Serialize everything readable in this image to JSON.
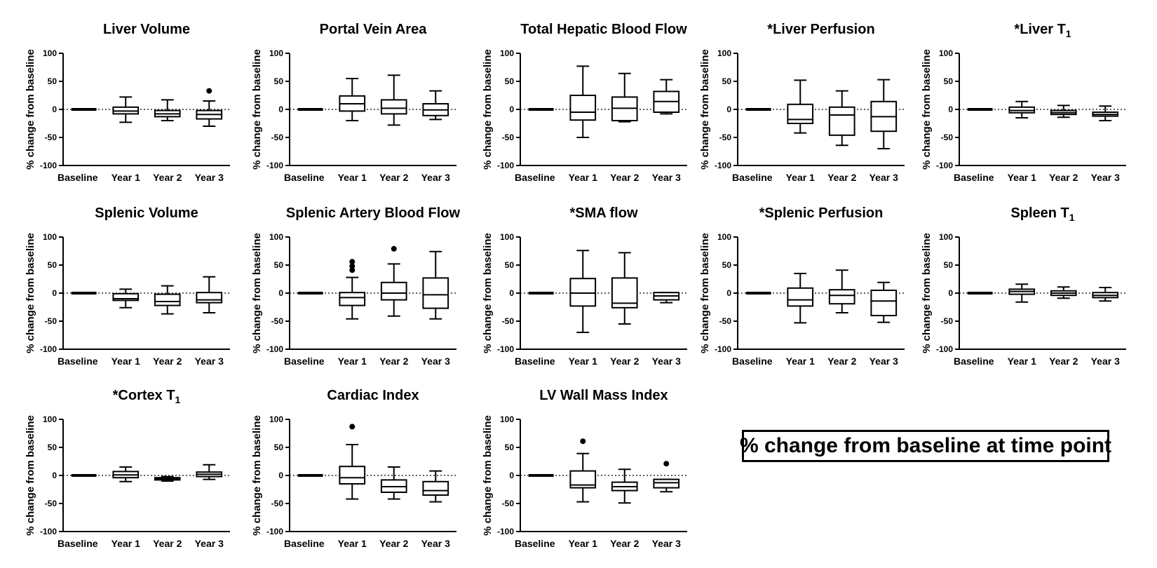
{
  "figure_note": "% change from baseline at time point",
  "chart_data": [
    {
      "id": "liver-volume",
      "type": "box",
      "title": "Liver Volume",
      "subscript": "",
      "ylabel": "% change from baseline",
      "ylim": [
        -100,
        100
      ],
      "yticks": [
        100,
        50,
        0,
        -50,
        -100
      ],
      "reference_line": 0,
      "categories": [
        "Baseline",
        "Year 1",
        "Year 2",
        "Year 3"
      ],
      "boxes": [
        {
          "min": 0,
          "q1": 0,
          "median": 0,
          "q3": 0,
          "max": 0,
          "outliers": []
        },
        {
          "min": -23,
          "q1": -8,
          "median": -3,
          "q3": 4,
          "max": 22,
          "outliers": []
        },
        {
          "min": -20,
          "q1": -13,
          "median": -8,
          "q3": -2,
          "max": 17,
          "outliers": []
        },
        {
          "min": -30,
          "q1": -17,
          "median": -9,
          "q3": -2,
          "max": 15,
          "outliers": [
            33
          ]
        }
      ]
    },
    {
      "id": "portal-vein-area",
      "type": "box",
      "title": "Portal Vein Area",
      "subscript": "",
      "ylabel": "% change from baseline",
      "ylim": [
        -100,
        100
      ],
      "yticks": [
        100,
        50,
        0,
        -50,
        -100
      ],
      "reference_line": 0,
      "categories": [
        "Baseline",
        "Year 1",
        "Year 2",
        "Year 3"
      ],
      "boxes": [
        {
          "min": 0,
          "q1": 0,
          "median": 0,
          "q3": 0,
          "max": 0,
          "outliers": []
        },
        {
          "min": -20,
          "q1": -3,
          "median": 10,
          "q3": 24,
          "max": 55,
          "outliers": []
        },
        {
          "min": -28,
          "q1": -8,
          "median": 2,
          "q3": 17,
          "max": 61,
          "outliers": []
        },
        {
          "min": -18,
          "q1": -11,
          "median": -1,
          "q3": 10,
          "max": 33,
          "outliers": []
        }
      ]
    },
    {
      "id": "total-hepatic-blood-flow",
      "type": "box",
      "title": "Total Hepatic Blood Flow",
      "subscript": "",
      "ylabel": "% change from baseline",
      "ylim": [
        -100,
        100
      ],
      "yticks": [
        100,
        50,
        0,
        -50,
        -100
      ],
      "reference_line": 0,
      "categories": [
        "Baseline",
        "Year 1",
        "Year 2",
        "Year 3"
      ],
      "boxes": [
        {
          "min": 0,
          "q1": 0,
          "median": 0,
          "q3": 0,
          "max": 0,
          "outliers": []
        },
        {
          "min": -50,
          "q1": -19,
          "median": -5,
          "q3": 25,
          "max": 77,
          "outliers": []
        },
        {
          "min": -22,
          "q1": -20,
          "median": 2,
          "q3": 22,
          "max": 64,
          "outliers": []
        },
        {
          "min": -8,
          "q1": -5,
          "median": 14,
          "q3": 32,
          "max": 53,
          "outliers": []
        }
      ]
    },
    {
      "id": "liver-perfusion",
      "type": "box",
      "title": "*Liver Perfusion",
      "subscript": "",
      "ylabel": "% change from baseline",
      "ylim": [
        -100,
        100
      ],
      "yticks": [
        100,
        50,
        0,
        -50,
        -100
      ],
      "reference_line": 0,
      "categories": [
        "Baseline",
        "Year 1",
        "Year 2",
        "Year 3"
      ],
      "boxes": [
        {
          "min": 0,
          "q1": 0,
          "median": 0,
          "q3": 0,
          "max": 0,
          "outliers": []
        },
        {
          "min": -42,
          "q1": -25,
          "median": -18,
          "q3": 9,
          "max": 52,
          "outliers": []
        },
        {
          "min": -64,
          "q1": -46,
          "median": -10,
          "q3": 4,
          "max": 33,
          "outliers": []
        },
        {
          "min": -70,
          "q1": -39,
          "median": -13,
          "q3": 14,
          "max": 53,
          "outliers": []
        }
      ]
    },
    {
      "id": "liver-t1",
      "type": "box",
      "title": "*Liver T",
      "subscript": "1",
      "ylabel": "% change from baseline",
      "ylim": [
        -100,
        100
      ],
      "yticks": [
        100,
        50,
        0,
        -50,
        -100
      ],
      "reference_line": 0,
      "categories": [
        "Baseline",
        "Year 1",
        "Year 2",
        "Year 3"
      ],
      "boxes": [
        {
          "min": 0,
          "q1": 0,
          "median": 0,
          "q3": 0,
          "max": 0,
          "outliers": []
        },
        {
          "min": -15,
          "q1": -6,
          "median": -2,
          "q3": 4,
          "max": 14,
          "outliers": []
        },
        {
          "min": -14,
          "q1": -9,
          "median": -6,
          "q3": -2,
          "max": 7,
          "outliers": []
        },
        {
          "min": -20,
          "q1": -12,
          "median": -9,
          "q3": -5,
          "max": 6,
          "outliers": []
        }
      ]
    },
    {
      "id": "splenic-volume",
      "type": "box",
      "title": "Splenic Volume",
      "subscript": "",
      "ylabel": "% change from baseline",
      "ylim": [
        -100,
        100
      ],
      "yticks": [
        100,
        50,
        0,
        -50,
        -100
      ],
      "reference_line": 0,
      "categories": [
        "Baseline",
        "Year 1",
        "Year 2",
        "Year 3"
      ],
      "boxes": [
        {
          "min": 0,
          "q1": 0,
          "median": 0,
          "q3": 0,
          "max": 0,
          "outliers": []
        },
        {
          "min": -26,
          "q1": -13,
          "median": -10,
          "q3": -1,
          "max": 7,
          "outliers": []
        },
        {
          "min": -37,
          "q1": -22,
          "median": -15,
          "q3": -2,
          "max": 13,
          "outliers": []
        },
        {
          "min": -35,
          "q1": -17,
          "median": -12,
          "q3": 1,
          "max": 29,
          "outliers": []
        }
      ]
    },
    {
      "id": "splenic-artery-blood-flow",
      "type": "box",
      "title": "Splenic Artery Blood Flow",
      "subscript": "",
      "ylabel": "% change from baseline",
      "ylim": [
        -100,
        100
      ],
      "yticks": [
        100,
        50,
        0,
        -50,
        -100
      ],
      "reference_line": 0,
      "categories": [
        "Baseline",
        "Year 1",
        "Year 2",
        "Year 3"
      ],
      "boxes": [
        {
          "min": 0,
          "q1": 0,
          "median": 0,
          "q3": 0,
          "max": 0,
          "outliers": []
        },
        {
          "min": -46,
          "q1": -22,
          "median": -8,
          "q3": 1,
          "max": 28,
          "outliers": [
            41,
            48,
            56
          ]
        },
        {
          "min": -41,
          "q1": -12,
          "median": 0,
          "q3": 19,
          "max": 52,
          "outliers": [
            79
          ]
        },
        {
          "min": -46,
          "q1": -27,
          "median": -3,
          "q3": 27,
          "max": 74,
          "outliers": []
        }
      ]
    },
    {
      "id": "sma-flow",
      "type": "box",
      "title": "*SMA flow",
      "subscript": "",
      "ylabel": "% change from baseline",
      "ylim": [
        -100,
        100
      ],
      "yticks": [
        100,
        50,
        0,
        -50,
        -100
      ],
      "reference_line": 0,
      "categories": [
        "Baseline",
        "Year 1",
        "Year 2",
        "Year 3"
      ],
      "boxes": [
        {
          "min": 0,
          "q1": 0,
          "median": 0,
          "q3": 0,
          "max": 0,
          "outliers": []
        },
        {
          "min": -70,
          "q1": -23,
          "median": 0,
          "q3": 26,
          "max": 76,
          "outliers": []
        },
        {
          "min": -55,
          "q1": -26,
          "median": -18,
          "q3": 27,
          "max": 72,
          "outliers": []
        },
        {
          "min": -17,
          "q1": -12,
          "median": -5,
          "q3": 1,
          "max": 1,
          "outliers": []
        }
      ]
    },
    {
      "id": "splenic-perfusion",
      "type": "box",
      "title": "*Splenic Perfusion",
      "subscript": "",
      "ylabel": "% change from baseline",
      "ylim": [
        -100,
        100
      ],
      "yticks": [
        100,
        50,
        0,
        -50,
        -100
      ],
      "reference_line": 0,
      "categories": [
        "Baseline",
        "Year 1",
        "Year 2",
        "Year 3"
      ],
      "boxes": [
        {
          "min": 0,
          "q1": 0,
          "median": 0,
          "q3": 0,
          "max": 0,
          "outliers": []
        },
        {
          "min": -53,
          "q1": -23,
          "median": -12,
          "q3": 9,
          "max": 35,
          "outliers": []
        },
        {
          "min": -35,
          "q1": -19,
          "median": -4,
          "q3": 6,
          "max": 41,
          "outliers": []
        },
        {
          "min": -52,
          "q1": -40,
          "median": -14,
          "q3": 5,
          "max": 19,
          "outliers": []
        }
      ]
    },
    {
      "id": "spleen-t1",
      "type": "box",
      "title": "Spleen T",
      "subscript": "1",
      "ylabel": "% change from baseline",
      "ylim": [
        -100,
        100
      ],
      "yticks": [
        100,
        50,
        0,
        -50,
        -100
      ],
      "reference_line": 0,
      "categories": [
        "Baseline",
        "Year 1",
        "Year 2",
        "Year 3"
      ],
      "boxes": [
        {
          "min": 0,
          "q1": 0,
          "median": 0,
          "q3": 0,
          "max": 0,
          "outliers": []
        },
        {
          "min": -16,
          "q1": -2,
          "median": 3,
          "q3": 7,
          "max": 16,
          "outliers": []
        },
        {
          "min": -9,
          "q1": -4,
          "median": 0,
          "q3": 4,
          "max": 11,
          "outliers": []
        },
        {
          "min": -14,
          "q1": -8,
          "median": -4,
          "q3": 1,
          "max": 10,
          "outliers": []
        }
      ]
    },
    {
      "id": "cortex-t1",
      "type": "box",
      "title": "*Cortex T",
      "subscript": "1",
      "ylabel": "% change from baseline",
      "ylim": [
        -100,
        100
      ],
      "yticks": [
        100,
        50,
        0,
        -50,
        -100
      ],
      "reference_line": 0,
      "categories": [
        "Baseline",
        "Year 1",
        "Year 2",
        "Year 3"
      ],
      "boxes": [
        {
          "min": 0,
          "q1": 0,
          "median": 0,
          "q3": 0,
          "max": 0,
          "outliers": []
        },
        {
          "min": -11,
          "q1": -4,
          "median": 1,
          "q3": 7,
          "max": 15,
          "outliers": []
        },
        {
          "min": -10,
          "q1": -8,
          "median": -6,
          "q3": -4,
          "max": -2,
          "outliers": []
        },
        {
          "min": -7,
          "q1": -2,
          "median": 2,
          "q3": 6,
          "max": 19,
          "outliers": []
        }
      ]
    },
    {
      "id": "cardiac-index",
      "type": "box",
      "title": "Cardiac Index",
      "subscript": "",
      "ylabel": "% change from baseline",
      "ylim": [
        -100,
        100
      ],
      "yticks": [
        100,
        50,
        0,
        -50,
        -100
      ],
      "reference_line": 0,
      "categories": [
        "Baseline",
        "Year 1",
        "Year 2",
        "Year 3"
      ],
      "boxes": [
        {
          "min": 0,
          "q1": 0,
          "median": 0,
          "q3": 0,
          "max": 0,
          "outliers": []
        },
        {
          "min": -42,
          "q1": -15,
          "median": -4,
          "q3": 16,
          "max": 55,
          "outliers": [
            87
          ]
        },
        {
          "min": -42,
          "q1": -30,
          "median": -20,
          "q3": -8,
          "max": 15,
          "outliers": []
        },
        {
          "min": -47,
          "q1": -35,
          "median": -27,
          "q3": -11,
          "max": 8,
          "outliers": []
        }
      ]
    },
    {
      "id": "lv-wall-mass-index",
      "type": "box",
      "title": "LV Wall Mass Index",
      "subscript": "",
      "ylabel": "% change from baseline",
      "ylim": [
        -100,
        100
      ],
      "yticks": [
        100,
        50,
        0,
        -50,
        -100
      ],
      "reference_line": 0,
      "categories": [
        "Baseline",
        "Year 1",
        "Year 2",
        "Year 3"
      ],
      "boxes": [
        {
          "min": 0,
          "q1": 0,
          "median": 0,
          "q3": 0,
          "max": 0,
          "outliers": []
        },
        {
          "min": -47,
          "q1": -22,
          "median": -17,
          "q3": 8,
          "max": 39,
          "outliers": [
            61
          ]
        },
        {
          "min": -49,
          "q1": -27,
          "median": -20,
          "q3": -12,
          "max": 11,
          "outliers": []
        },
        {
          "min": -29,
          "q1": -22,
          "median": -13,
          "q3": -7,
          "max": -7,
          "outliers": [
            21
          ]
        }
      ]
    }
  ]
}
